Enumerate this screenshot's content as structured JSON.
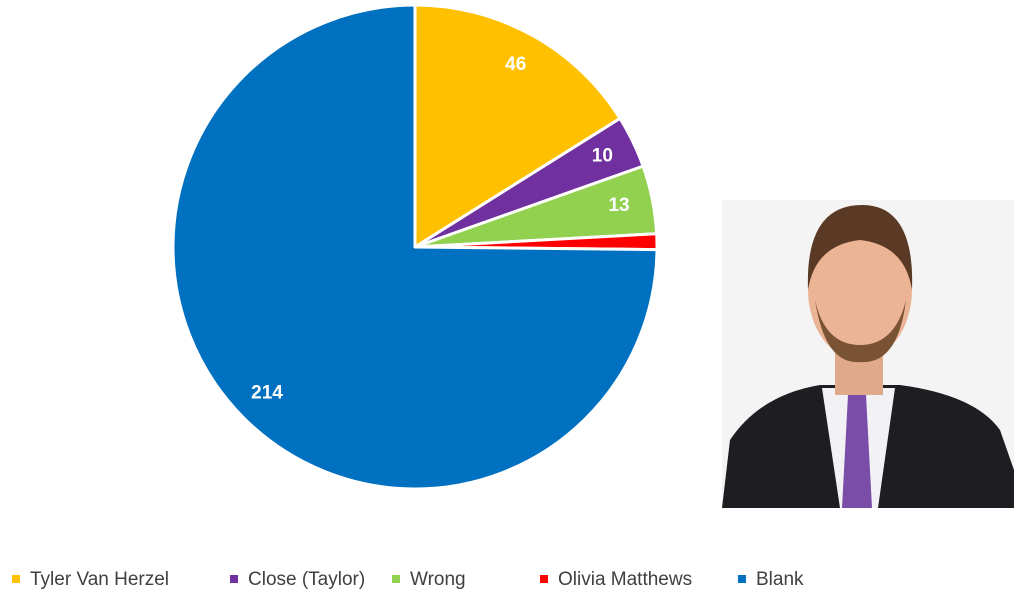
{
  "chart_data": {
    "type": "pie",
    "categories": [
      "Tyler Van Herzel",
      "Close (Taylor)",
      "Wrong",
      "Olivia Matthews",
      "Blank"
    ],
    "values": [
      46,
      10,
      13,
      3,
      214
    ],
    "value_labels": [
      "46",
      "10",
      "13",
      null,
      "214"
    ],
    "colors": [
      "#ffc000",
      "#7030a0",
      "#92d050",
      "#ff0000",
      "#0070c0"
    ],
    "legend": "bottom"
  }
}
